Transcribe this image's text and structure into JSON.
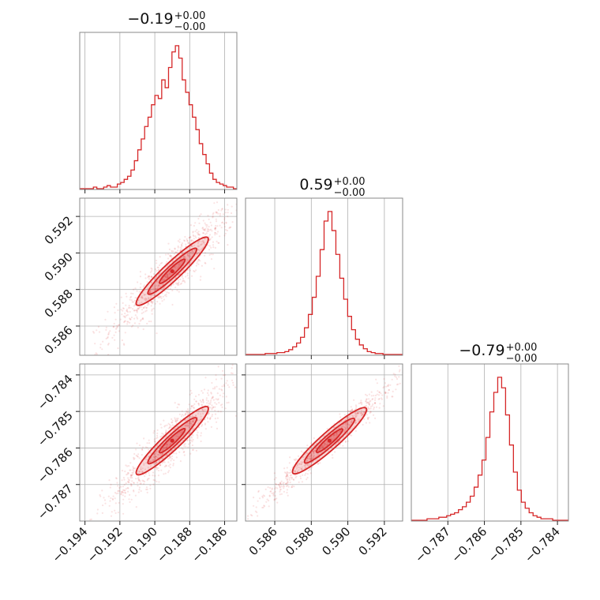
{
  "chart_data": {
    "type": "corner",
    "color": "#d62728",
    "params": [
      {
        "range": [
          -0.1943,
          -0.1853
        ],
        "ticks": [
          "−0.194",
          "−0.192",
          "−0.190",
          "−0.188",
          "−0.186"
        ],
        "tick_values": [
          -0.194,
          -0.192,
          -0.19,
          -0.188,
          -0.186
        ],
        "title": {
          "value": "−0.19",
          "plus": "+0.00",
          "minus": "−0.00"
        }
      },
      {
        "range": [
          0.5844,
          0.593
        ],
        "ticks": [
          "0.586",
          "0.588",
          "0.590",
          "0.592"
        ],
        "tick_values": [
          0.586,
          0.588,
          0.59,
          0.592
        ],
        "title": {
          "value": "0.59",
          "plus": "+0.00",
          "minus": "−0.00"
        }
      },
      {
        "range": [
          -0.788,
          -0.7837
        ],
        "ticks": [
          "−0.787",
          "−0.786",
          "−0.785",
          "−0.784"
        ],
        "tick_values": [
          -0.787,
          -0.786,
          -0.785,
          -0.784
        ],
        "title": {
          "value": "−0.79",
          "plus": "+0.00",
          "minus": "−0.00"
        }
      }
    ],
    "histograms": [
      [
        0,
        0,
        0,
        0,
        1,
        0,
        0,
        1,
        2,
        1,
        1,
        3,
        4,
        6,
        8,
        12,
        18,
        25,
        32,
        40,
        46,
        54,
        60,
        58,
        70,
        65,
        78,
        88,
        92,
        84,
        70,
        62,
        54,
        46,
        38,
        29,
        22,
        16,
        10,
        6,
        4,
        3,
        2,
        1,
        1,
        0
      ],
      [
        0,
        0,
        0,
        0,
        0,
        1,
        1,
        1,
        2,
        2,
        3,
        5,
        8,
        12,
        18,
        28,
        42,
        60,
        82,
        110,
        140,
        150,
        130,
        105,
        80,
        58,
        40,
        26,
        16,
        10,
        6,
        3,
        2,
        1,
        1,
        0,
        0,
        0,
        0,
        0
      ],
      [
        0,
        0,
        0,
        0,
        1,
        1,
        1,
        2,
        2,
        3,
        4,
        5,
        7,
        9,
        12,
        16,
        22,
        30,
        40,
        55,
        72,
        85,
        95,
        88,
        70,
        50,
        32,
        20,
        12,
        8,
        5,
        3,
        2,
        1,
        1,
        1,
        0,
        0,
        0,
        0
      ]
    ],
    "grid": true
  }
}
